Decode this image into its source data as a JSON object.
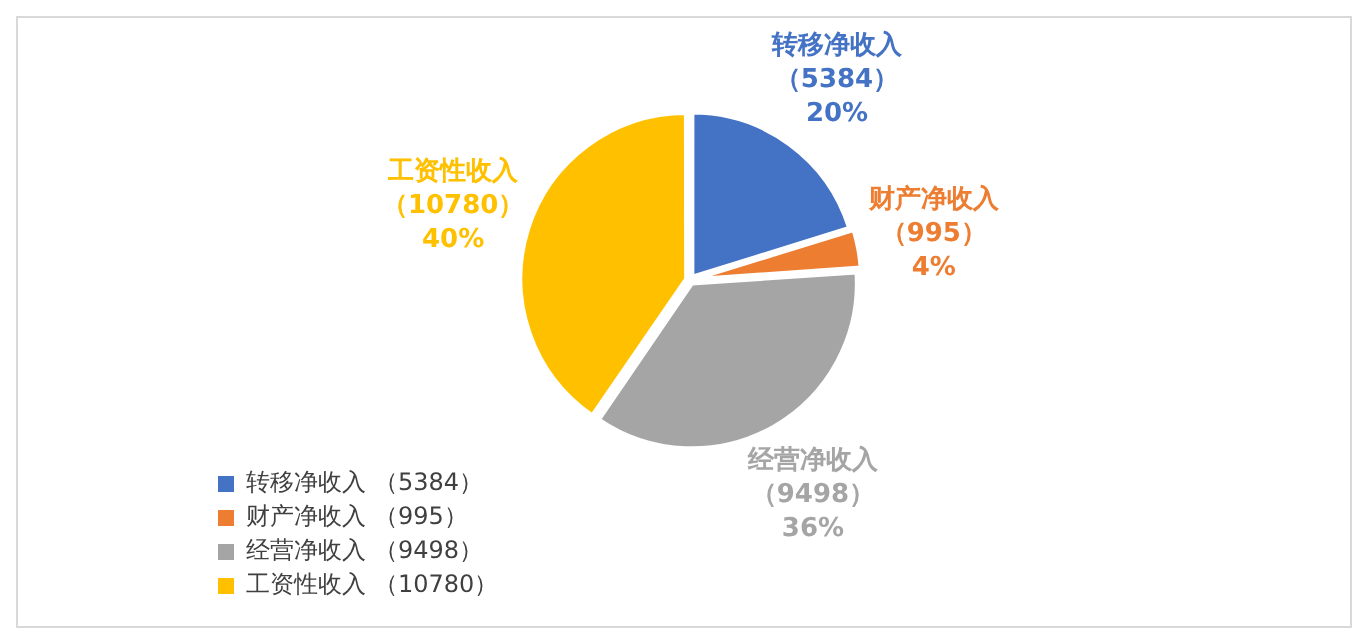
{
  "chart_data": {
    "type": "pie",
    "categories": [
      "转移净收入",
      "财产净收入",
      "经营净收入",
      "工资性收入"
    ],
    "values": [
      5384,
      995,
      9498,
      10780
    ],
    "value_labels": [
      "（5384）",
      "（995）",
      "（9498）",
      "（10780）"
    ],
    "annotations": [
      "20%",
      "4%",
      "36%",
      "40%"
    ],
    "colors": [
      "#4472c4",
      "#ed7d31",
      "#a5a5a5",
      "#ffc000"
    ],
    "legend": "bottom left"
  }
}
